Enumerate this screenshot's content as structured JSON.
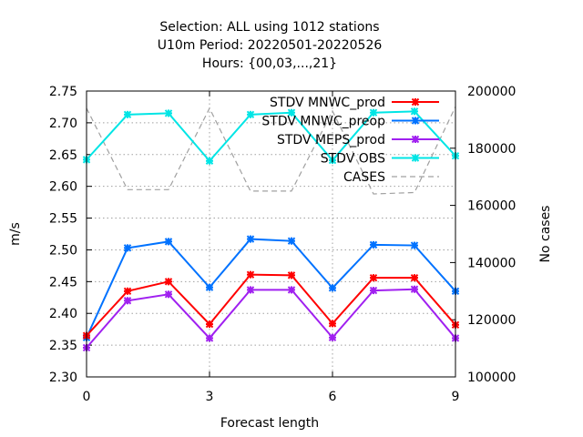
{
  "chart_data": {
    "type": "line",
    "title_lines": [
      "Selection: ALL using  1012 stations",
      "U10m   Period: 20220501-20220526",
      "Hours: {00,03,...,21}"
    ],
    "xlabel": "Forecast length",
    "ylabel": "m/s",
    "y2label": "No cases",
    "xlim": [
      0,
      9
    ],
    "ylim": [
      2.3,
      2.75
    ],
    "y2lim": [
      100000,
      200000
    ],
    "xticks": [
      0,
      3,
      6,
      9
    ],
    "yticks": [
      2.3,
      2.35,
      2.4,
      2.45,
      2.5,
      2.55,
      2.6,
      2.65,
      2.7,
      2.75
    ],
    "y2ticks": [
      100000,
      120000,
      140000,
      160000,
      180000,
      200000
    ],
    "grid": true,
    "legend_position": "top-right",
    "x": [
      0,
      1,
      2,
      3,
      4,
      5,
      6,
      7,
      8,
      9
    ],
    "series": [
      {
        "name": "STDV MNWC_prod",
        "color": "#ff0000",
        "axis": "y1",
        "style": "solid",
        "values": [
          2.365,
          2.435,
          2.45,
          2.383,
          2.461,
          2.46,
          2.384,
          2.456,
          2.456,
          2.382
        ]
      },
      {
        "name": "STDV MNWC_preop",
        "color": "#0072ff",
        "axis": "y1",
        "style": "solid",
        "values": [
          2.362,
          2.503,
          2.513,
          2.441,
          2.517,
          2.514,
          2.44,
          2.508,
          2.507,
          2.435
        ]
      },
      {
        "name": "STDV MEPS_prod",
        "color": "#a020f0",
        "axis": "y1",
        "style": "solid",
        "values": [
          2.346,
          2.42,
          2.43,
          2.361,
          2.437,
          2.437,
          2.362,
          2.436,
          2.438,
          2.361
        ]
      },
      {
        "name": "STDV OBS",
        "color": "#00e5e5",
        "axis": "y1",
        "style": "solid",
        "values": [
          2.642,
          2.713,
          2.715,
          2.64,
          2.713,
          2.716,
          2.641,
          2.716,
          2.718,
          2.648
        ]
      },
      {
        "name": "CASES",
        "color": "#a0a0a0",
        "axis": "y2",
        "style": "dashed",
        "values": [
          194000,
          165500,
          165500,
          194000,
          165000,
          165000,
          193000,
          164000,
          164500,
          194500
        ]
      }
    ]
  }
}
